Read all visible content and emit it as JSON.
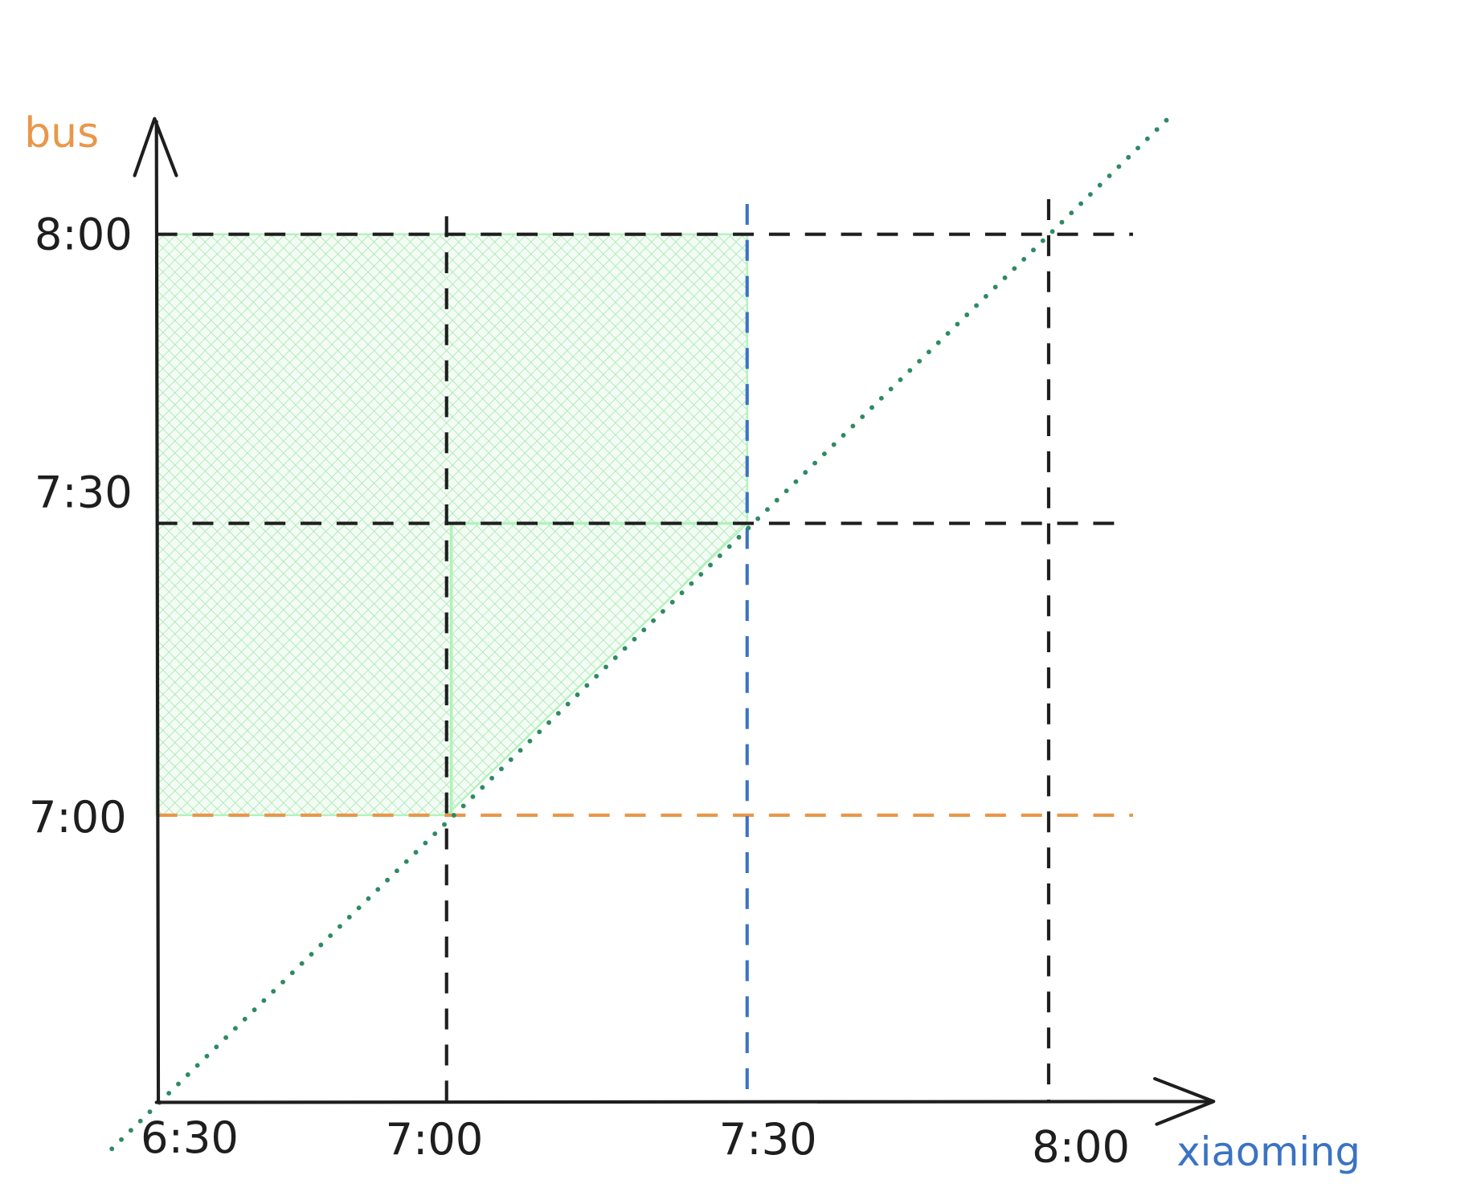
{
  "y_axis": {
    "title": "bus",
    "labels": [
      "8:00",
      "7:30",
      "7:00"
    ]
  },
  "x_axis": {
    "title": "xiaoming",
    "labels": [
      "6:30",
      "7:00",
      "7:30",
      "8:00"
    ]
  }
}
